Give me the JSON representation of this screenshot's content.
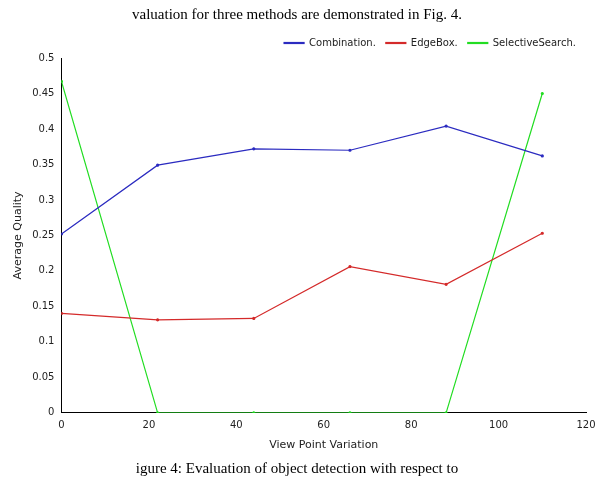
{
  "chart_data": {
    "type": "line",
    "title": "valuation for three methods are demonstrated in Fig. 4.",
    "subtitle": "igure 4: Evaluation of object detection with respect to",
    "x_label": "View Point Variation",
    "y_label": "Average Quality",
    "x": [
      0,
      22,
      44,
      66,
      88,
      110
    ],
    "series": [
      {
        "name": "Combination.",
        "color": "#2b2bc0",
        "values": [
          0.252,
          0.349,
          0.372,
          0.37,
          0.404,
          0.362
        ]
      },
      {
        "name": "EdgeBox.",
        "color": "#d42a2a",
        "values": [
          0.14,
          0.131,
          0.133,
          0.206,
          0.181,
          0.253
        ]
      },
      {
        "name": "SelectiveSearch.",
        "color": "#22dd22",
        "values": [
          0.467,
          0,
          0,
          0,
          0,
          0.45
        ]
      }
    ],
    "xlim": [
      0,
      120
    ],
    "xticks": [
      0,
      20,
      40,
      60,
      80,
      100,
      120
    ],
    "ylim": [
      0,
      0.5
    ],
    "yticks": [
      0,
      0.05,
      0.1,
      0.15,
      0.2,
      0.25,
      0.3,
      0.35,
      0.4,
      0.45,
      0.5
    ],
    "grid": false,
    "legend": "upper right"
  }
}
